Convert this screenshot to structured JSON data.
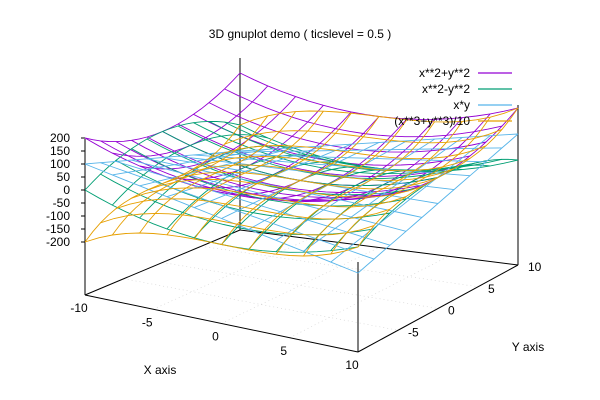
{
  "chart_data": {
    "type": "surface3d",
    "title": "3D gnuplot demo ( ticslevel = 0.5 )",
    "xlabel": "X axis",
    "ylabel": "Y axis",
    "xlim": [
      -10,
      10
    ],
    "ylim": [
      -10,
      10
    ],
    "zlim": [
      -200,
      200
    ],
    "ticslevel": 0.5,
    "x_ticks": [
      -10,
      -5,
      0,
      5,
      10
    ],
    "y_ticks": [
      -5,
      0,
      5,
      10
    ],
    "z_ticks": [
      200,
      150,
      100,
      50,
      0,
      -50,
      -100,
      -150,
      -200
    ],
    "grid": true,
    "legend_position": "top-right",
    "mesh_samples": 10,
    "series": [
      {
        "name": "x**2+y**2",
        "formula": "x**2+y**2",
        "color": "#9400d3"
      },
      {
        "name": "x**2-y**2",
        "formula": "x**2-y**2",
        "color": "#009e73"
      },
      {
        "name": "x*y",
        "formula": "x*y",
        "color": "#56b4e9"
      },
      {
        "name": "(x**3+y**3)/10",
        "formula": "(x**3+y**3)/10",
        "color": "#e69f00"
      }
    ]
  }
}
